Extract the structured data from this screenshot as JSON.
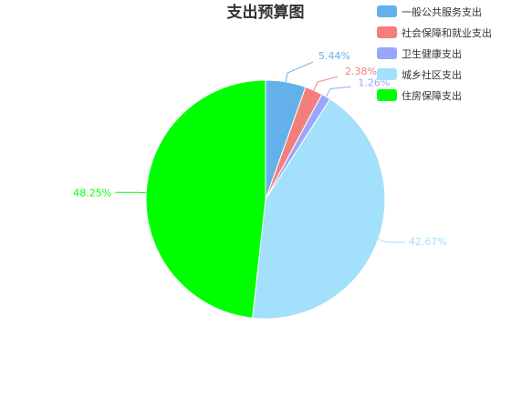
{
  "chart_data": {
    "type": "pie",
    "title": "支出预算图",
    "slices": [
      {
        "name": "一般公共服务支出",
        "value": 5.44,
        "label": "5.44%",
        "color": "#64b0ea"
      },
      {
        "name": "社会保障和就业支出",
        "value": 2.38,
        "label": "2.38%",
        "color": "#f47f7a"
      },
      {
        "name": "卫生健康支出",
        "value": 1.26,
        "label": "1.26%",
        "color": "#9aa6fb"
      },
      {
        "name": "城乡社区支出",
        "value": 42.67,
        "label": "42.67%",
        "color": "#a2e0fc"
      },
      {
        "name": "住房保障支出",
        "value": 48.25,
        "label": "48.25%",
        "color": "#00ff00"
      }
    ],
    "legend_position": "top-right",
    "start_angle_deg": 90,
    "direction": "clockwise"
  }
}
